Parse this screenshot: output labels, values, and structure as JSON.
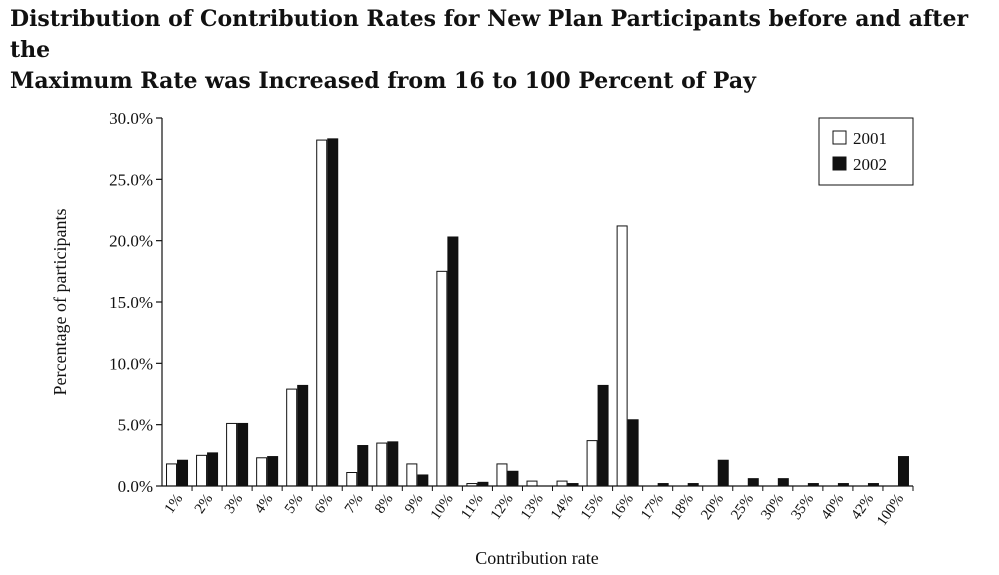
{
  "chart_data": {
    "type": "bar",
    "title_line1": "Distribution of Contribution Rates for New Plan Participants before and after the",
    "title_line2": "Maximum Rate was Increased from 16 to 100 Percent of Pay",
    "xlabel": "Contribution rate",
    "ylabel": "Percentage of participants",
    "ylim": [
      0,
      30
    ],
    "yticks": [
      {
        "value": 0,
        "label": "0.0%"
      },
      {
        "value": 5,
        "label": "5.0%"
      },
      {
        "value": 10,
        "label": "10.0%"
      },
      {
        "value": 15,
        "label": "15.0%"
      },
      {
        "value": 20,
        "label": "20.0%"
      },
      {
        "value": 25,
        "label": "25.0%"
      },
      {
        "value": 30,
        "label": "30.0%"
      }
    ],
    "categories": [
      "1%",
      "2%",
      "3%",
      "4%",
      "5%",
      "6%",
      "7%",
      "8%",
      "9%",
      "10%",
      "11%",
      "12%",
      "13%",
      "14%",
      "15%",
      "16%",
      "17%",
      "18%",
      "20%",
      "25%",
      "30%",
      "35%",
      "40%",
      "42%",
      "100%"
    ],
    "series": [
      {
        "name": "2001",
        "color": "#ffffff",
        "values": [
          1.8,
          2.5,
          5.1,
          2.3,
          7.9,
          28.2,
          1.1,
          3.5,
          1.8,
          17.5,
          0.2,
          1.8,
          0.4,
          0.4,
          3.7,
          21.2,
          0,
          0,
          0,
          0,
          0,
          0,
          0,
          0,
          0
        ]
      },
      {
        "name": "2002",
        "color": "#111111",
        "values": [
          2.1,
          2.7,
          5.1,
          2.4,
          8.2,
          28.3,
          3.3,
          3.6,
          0.9,
          20.3,
          0.3,
          1.2,
          0,
          0.2,
          8.2,
          5.4,
          0.2,
          0.2,
          2.1,
          0.6,
          0.6,
          0.2,
          0.2,
          0.2,
          2.4
        ]
      }
    ],
    "legend": "top-right",
    "grid": false
  }
}
